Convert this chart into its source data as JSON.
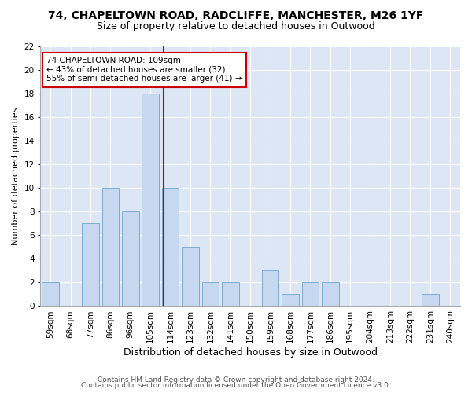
{
  "title1": "74, CHAPELTOWN ROAD, RADCLIFFE, MANCHESTER, M26 1YF",
  "title2": "Size of property relative to detached houses in Outwood",
  "xlabel": "Distribution of detached houses by size in Outwood",
  "ylabel": "Number of detached properties",
  "categories": [
    "59sqm",
    "68sqm",
    "77sqm",
    "86sqm",
    "96sqm",
    "105sqm",
    "114sqm",
    "123sqm",
    "132sqm",
    "141sqm",
    "150sqm",
    "159sqm",
    "168sqm",
    "177sqm",
    "186sqm",
    "195sqm",
    "204sqm",
    "213sqm",
    "222sqm",
    "231sqm",
    "240sqm"
  ],
  "values": [
    2,
    0,
    7,
    10,
    8,
    18,
    10,
    5,
    2,
    2,
    0,
    3,
    1,
    2,
    2,
    0,
    0,
    0,
    0,
    1,
    0
  ],
  "bar_color": "#c5d8f0",
  "bar_edge_color": "#7aadd4",
  "background_color": "#dce6f5",
  "grid_color": "#ffffff",
  "subject_line_color": "#cc0000",
  "subject_bar_idx": 6,
  "annotation_line1": "74 CHAPELTOWN ROAD: 109sqm",
  "annotation_line2": "← 43% of detached houses are smaller (32)",
  "annotation_line3": "55% of semi-detached houses are larger (41) →",
  "annotation_box_color": "#ffffff",
  "annotation_box_edge": "#cc0000",
  "ylim": [
    0,
    22
  ],
  "yticks": [
    0,
    2,
    4,
    6,
    8,
    10,
    12,
    14,
    16,
    18,
    20,
    22
  ],
  "footer1": "Contains HM Land Registry data © Crown copyright and database right 2024.",
  "footer2": "Contains public sector information licensed under the Open Government Licence v3.0.",
  "title1_fontsize": 10,
  "title2_fontsize": 9,
  "xlabel_fontsize": 9,
  "ylabel_fontsize": 8,
  "tick_fontsize": 7.5,
  "annotation_fontsize": 7.5,
  "footer_fontsize": 6.5
}
